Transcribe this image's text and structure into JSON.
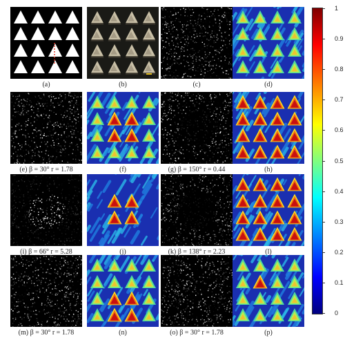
{
  "captions": {
    "a": "(a)",
    "b": "(b)",
    "c": "(c)",
    "d": "(d)",
    "e": "(e) β = 30° r = 1.78",
    "f": "(f)",
    "g": "(g) β = 150° r = 0.44",
    "h": "(h)",
    "i": "(i) β = 66° r = 5.28",
    "j": "(j)",
    "k": "(k) β = 138° r = 2.23",
    "l": "(l)",
    "m": "(m) β = 30° r = 1.78",
    "n": "(n)",
    "o": "(o) β = 30° r = 1.78",
    "p": "(p)"
  },
  "colorbar": {
    "ticks": [
      "1",
      "0.9",
      "0.8",
      "0.7",
      "0.6",
      "0.5",
      "0.4",
      "0.3",
      "0.2",
      "0.1",
      "0"
    ],
    "colors": [
      "#7f0000",
      "#ff0000",
      "#ff7f00",
      "#ffff00",
      "#7fff7f",
      "#00ffff",
      "#007fff",
      "#0000ff",
      "#00007f"
    ]
  }
}
